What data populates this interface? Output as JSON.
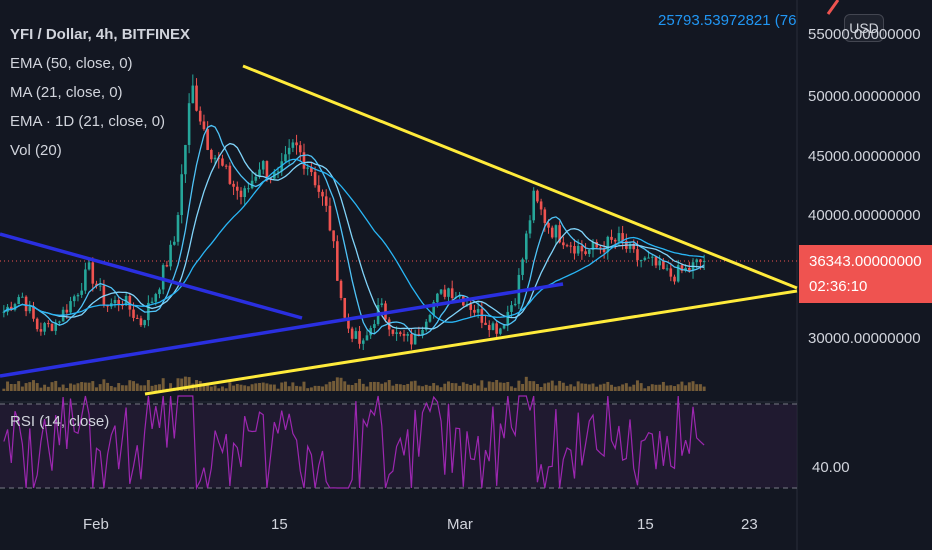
{
  "legend": {
    "title": "YFI / Dollar, 4h, BITFINEX",
    "indicators": [
      "EMA (50, close, 0)",
      "MA (21, close, 0)",
      "EMA · 1D (21, close, 0)",
      "Vol (20)"
    ]
  },
  "top_value": "25793.53972821 (76.",
  "usd_label": "USD",
  "price_axis": {
    "labels": [
      "55000.00000000",
      "50000.00000000",
      "45000.00000000",
      "40000.00000000",
      "30000.00000000"
    ]
  },
  "current_price": {
    "value": "36343.00000000",
    "countdown": "02:36:10"
  },
  "rsi": {
    "label": "RSI (14, close)",
    "axis_label": "40.00"
  },
  "time_axis": [
    "Feb",
    "15",
    "Mar",
    "15",
    "23"
  ],
  "colors": {
    "background": "#131722",
    "up": "#26a69a",
    "down": "#ef5350",
    "trendline_yellow": "#ffeb3b",
    "trendline_blue": "#2a2fe0",
    "rsi_line": "#9c27b0",
    "price_tag": "#ef5350"
  },
  "chart_data": {
    "type": "candlestick",
    "title": "YFI / Dollar, 4h, BITFINEX",
    "ylim": [
      25000,
      56500
    ],
    "approx_close_series": [
      32000,
      33500,
      30500,
      31000,
      33000,
      35500,
      32500,
      33000,
      31000,
      34000,
      38000,
      51000,
      46000,
      43500,
      41500,
      44500,
      43000,
      46000,
      44000,
      40000,
      31000,
      29000,
      32500,
      30000,
      29500,
      32500,
      34000,
      33000,
      31500,
      30500,
      33500,
      41500,
      39000,
      38000,
      37000,
      37500,
      38000,
      36500,
      36000,
      35000,
      35500,
      36343
    ],
    "current_price": 36343,
    "rsi_level": 40
  }
}
